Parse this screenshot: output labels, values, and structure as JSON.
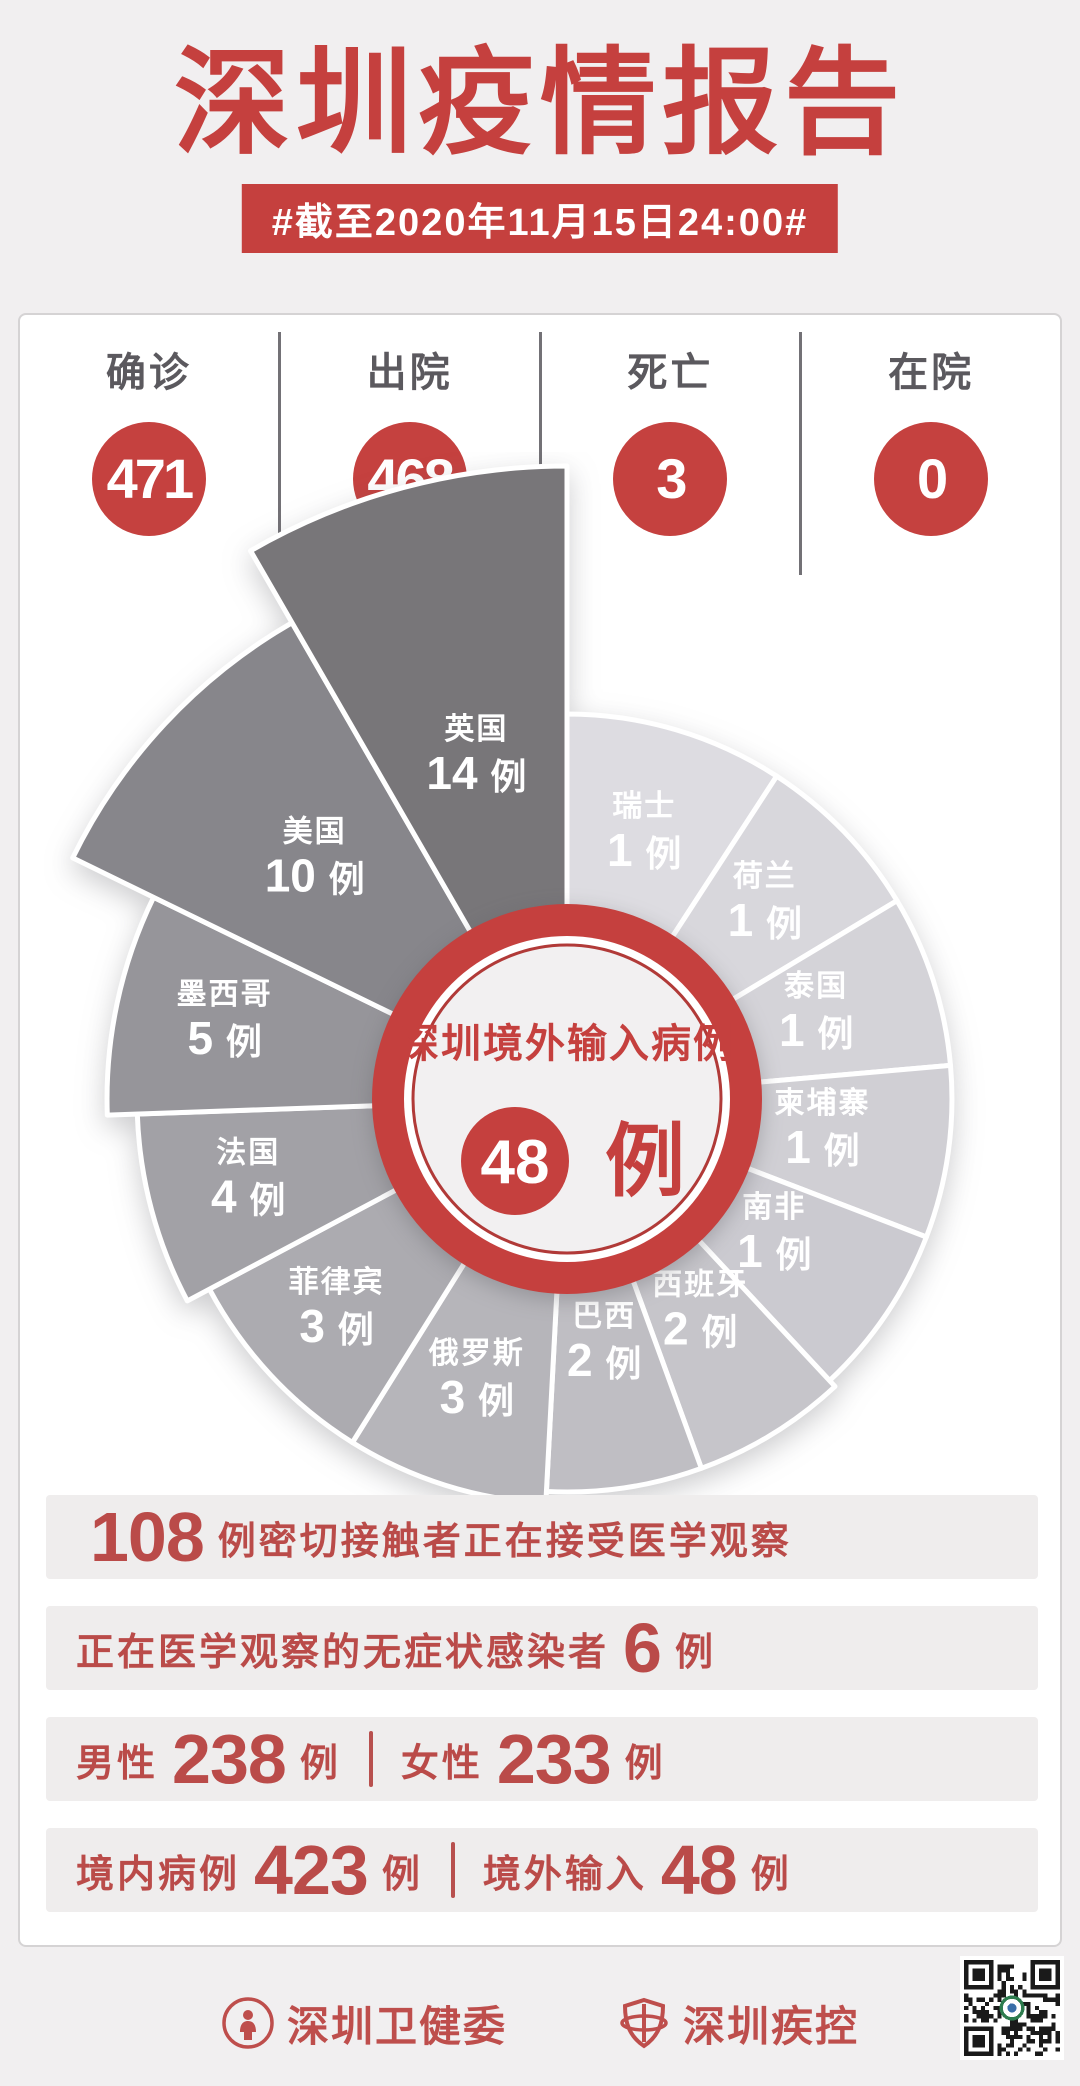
{
  "page": {
    "background": "#F1EFF0",
    "accent_red": "#C5403E",
    "bar_background": "#EFEDED",
    "slice_label_color": "#FFFFFF"
  },
  "header": {
    "title": "深圳疫情报告",
    "date_banner": "#截至2020年11月15日24:00#"
  },
  "summary": {
    "stats": [
      {
        "label": "确诊",
        "value": "471"
      },
      {
        "label": "出院",
        "value": "468"
      },
      {
        "label": "死亡",
        "value": "3"
      },
      {
        "label": "在院",
        "value": "0"
      }
    ]
  },
  "chart_data": {
    "type": "pie",
    "variant": "nightingale-rose",
    "title": "深圳境外输入病例",
    "center_value": "48",
    "unit": "例",
    "total": 48,
    "legend_position": "in-slice",
    "series": [
      {
        "name": "瑞士",
        "value": 1,
        "start": 0,
        "end": 33,
        "outer_r": 385,
        "label_r": 272,
        "color": "#DDDCE1"
      },
      {
        "name": "荷兰",
        "value": 1,
        "start": 33,
        "end": 59,
        "outer_r": 385,
        "label_r": 275,
        "color": "#D8D7DC"
      },
      {
        "name": "泰国",
        "value": 1,
        "start": 59,
        "end": 85,
        "outer_r": 385,
        "label_r": 262,
        "color": "#D4D3D8"
      },
      {
        "name": "柬埔寨",
        "value": 1,
        "start": 85,
        "end": 111,
        "outer_r": 385,
        "label_r": 258,
        "color": "#D0CFD4"
      },
      {
        "name": "南非",
        "value": 1,
        "start": 111,
        "end": 137,
        "outer_r": 385,
        "label_r": 250,
        "color": "#CBCAD0"
      },
      {
        "name": "西班牙",
        "value": 2,
        "start": 137,
        "end": 160,
        "outer_r": 393,
        "label_r": 255,
        "color": "#C6C5CA"
      },
      {
        "name": "巴西",
        "value": 2,
        "start": 160,
        "end": 183,
        "outer_r": 393,
        "label_r": 252,
        "color": "#BFBEC3"
      },
      {
        "name": "俄罗斯",
        "value": 3,
        "start": 183,
        "end": 212,
        "outer_r": 405,
        "label_r": 300,
        "color": "#B6B5BA"
      },
      {
        "name": "菲律宾",
        "value": 3,
        "start": 212,
        "end": 242,
        "outer_r": 405,
        "label_r": 315,
        "color": "#ACABB0"
      },
      {
        "name": "法国",
        "value": 4,
        "start": 242,
        "end": 268,
        "outer_r": 430,
        "label_r": 330,
        "color": "#A2A1A6"
      },
      {
        "name": "墨西哥",
        "value": 5,
        "start": 268,
        "end": 296,
        "outer_r": 460,
        "label_r": 350,
        "color": "#96959A"
      },
      {
        "name": "美国",
        "value": 10,
        "start": 296,
        "end": 330,
        "outer_r": 550,
        "label_r": 345,
        "color": "#87868B"
      },
      {
        "name": "英国",
        "value": 14,
        "start": 330,
        "end": 360,
        "outer_r": 633,
        "label_r": 350,
        "color": "#787679"
      }
    ]
  },
  "observation_bars": [
    {
      "parts": [
        {
          "t": "108",
          "big": true
        },
        {
          "t": "例密切接触者正在接受医学观察"
        }
      ]
    },
    {
      "parts": [
        {
          "t": "正在医学观察的无症状感染者"
        },
        {
          "t": "6",
          "big": true
        },
        {
          "t": "例"
        }
      ]
    },
    {
      "parts": [
        {
          "t": "男性"
        },
        {
          "t": "238",
          "big": true
        },
        {
          "t": "例"
        },
        {
          "divider": true
        },
        {
          "t": "女性"
        },
        {
          "t": "233",
          "big": true
        },
        {
          "t": "例"
        }
      ]
    },
    {
      "parts": [
        {
          "t": "境内病例"
        },
        {
          "t": "423",
          "big": true
        },
        {
          "t": "例"
        },
        {
          "divider": true
        },
        {
          "t": "境外输入"
        },
        {
          "t": "48",
          "big": true
        },
        {
          "t": "例"
        }
      ]
    }
  ],
  "footer": {
    "org1_label": "深圳卫健委",
    "org2_label": "深圳疾控",
    "icons": {
      "org1": "health-commission-seal-icon",
      "org2": "cdc-shield-icon",
      "qr": "qr-code"
    }
  }
}
